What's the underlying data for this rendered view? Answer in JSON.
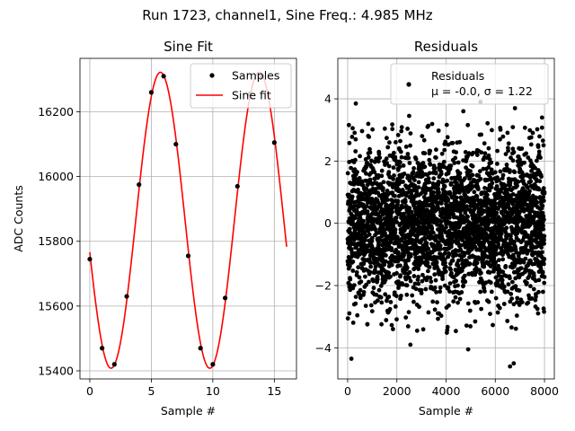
{
  "figure": {
    "title": "Run 1723, channel1, Sine Freq.: 4.985 MHz"
  },
  "chart_data": [
    {
      "type": "line",
      "title": "Sine Fit",
      "xlabel": "Sample #",
      "ylabel": "ADC Counts",
      "xlim": [
        -0.8,
        16.8
      ],
      "ylim": [
        15375,
        15365
      ],
      "xticks": [
        0,
        5,
        10,
        15
      ],
      "yticks": [
        15400,
        15600,
        15800,
        16000,
        16200
      ],
      "grid": true,
      "legend": {
        "placement": "top-right",
        "entries": [
          "Samples",
          "Sine fit"
        ]
      },
      "series": [
        {
          "name": "Samples",
          "style": "markers",
          "color": "#000000",
          "x": [
            0,
            1,
            2,
            3,
            4,
            5,
            6,
            7,
            8,
            9,
            10,
            11,
            12,
            13,
            14,
            15
          ],
          "y": [
            15745,
            15470,
            15420,
            15630,
            15975,
            16260,
            16310,
            16100,
            15755,
            15470,
            15420,
            15625,
            15970,
            16255,
            16310,
            16105
          ]
        },
        {
          "name": "Sine fit",
          "style": "line",
          "color": "#ff0000",
          "function": {
            "offset": 15865,
            "amplitude": 457,
            "period": 8.024,
            "peak_x": 5.74,
            "x_range": [
              0,
              16
            ]
          }
        }
      ]
    },
    {
      "type": "scatter",
      "title": "Residuals",
      "xlabel": "Sample #",
      "xlim": [
        -400,
        8400
      ],
      "ylim": [
        -5.0,
        5.3
      ],
      "xticks": [
        0,
        2000,
        4000,
        6000,
        8000
      ],
      "yticks": [
        -4,
        -2,
        0,
        2,
        4
      ],
      "grid": true,
      "legend": {
        "placement": "top-right",
        "entries": [
          "Residuals",
          "μ = -0.0, σ = 1.22"
        ]
      },
      "series": [
        {
          "name": "Residuals",
          "color": "#000000",
          "mean": -0.0,
          "sigma": 1.22,
          "count": 8000,
          "x_range": [
            0,
            8000
          ],
          "outliers": [
            [
              150,
              -4.35
            ],
            [
              330,
              3.85
            ],
            [
              2550,
              -3.9
            ],
            [
              4900,
              -4.05
            ],
            [
              5400,
              3.9
            ],
            [
              6600,
              -4.6
            ],
            [
              6750,
              -4.5
            ],
            [
              6800,
              3.7
            ],
            [
              7900,
              3.4
            ],
            [
              4700,
              3.6
            ],
            [
              2500,
              3.45
            ]
          ]
        }
      ]
    }
  ]
}
